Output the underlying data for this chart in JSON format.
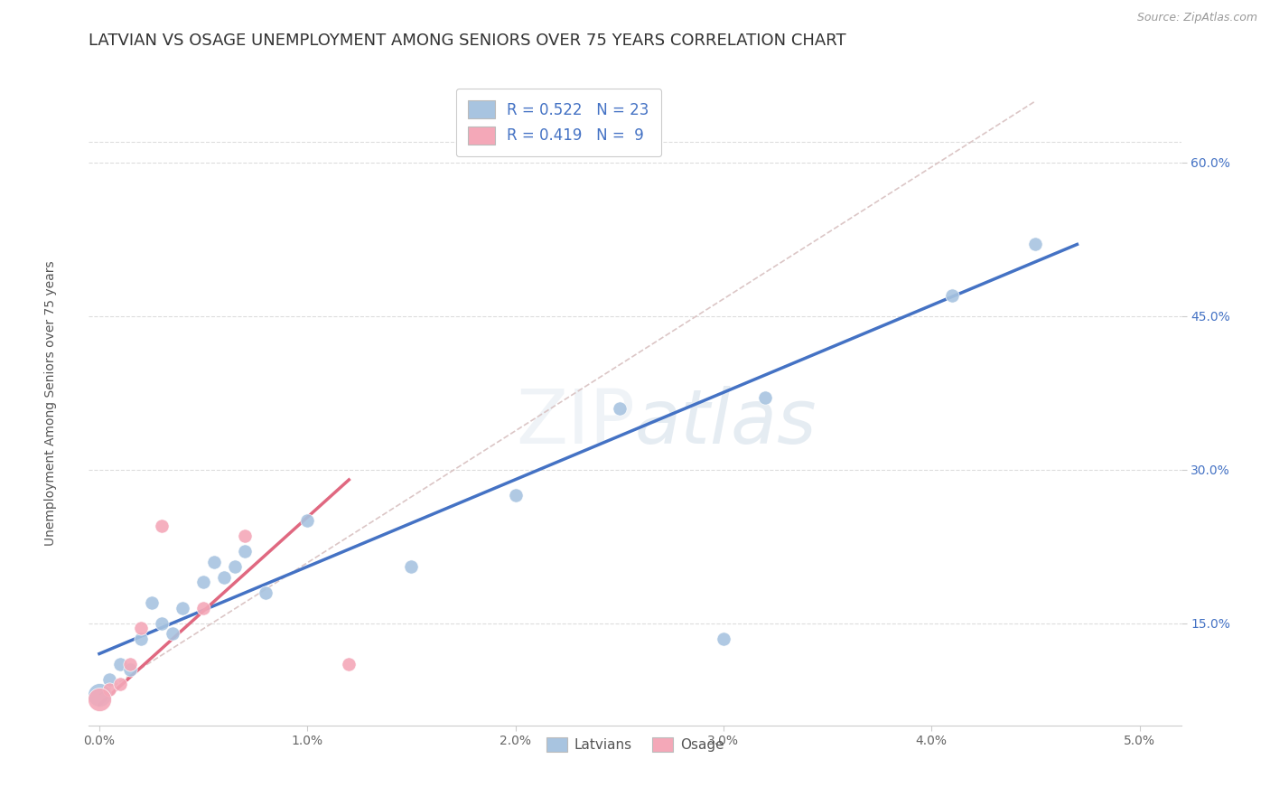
{
  "title": "LATVIAN VS OSAGE UNEMPLOYMENT AMONG SENIORS OVER 75 YEARS CORRELATION CHART",
  "source": "Source: ZipAtlas.com",
  "ylabel": "Unemployment Among Seniors over 75 years",
  "xlim": [
    -0.05,
    5.2
  ],
  "ylim": [
    5.0,
    68.0
  ],
  "x_ticks": [
    0.0,
    1.0,
    2.0,
    3.0,
    4.0,
    5.0
  ],
  "x_tick_labels": [
    "0.0%",
    "1.0%",
    "2.0%",
    "3.0%",
    "4.0%",
    "5.0%"
  ],
  "y_ticks": [
    15.0,
    30.0,
    45.0,
    60.0
  ],
  "y_tick_labels": [
    "15.0%",
    "30.0%",
    "45.0%",
    "60.0%"
  ],
  "latvian_x": [
    0.0,
    0.05,
    0.1,
    0.15,
    0.2,
    0.25,
    0.3,
    0.35,
    0.4,
    0.5,
    0.55,
    0.6,
    0.65,
    0.7,
    0.8,
    1.0,
    1.5,
    2.0,
    2.5,
    3.0,
    3.2,
    4.1,
    4.5
  ],
  "latvian_y": [
    8.0,
    9.5,
    11.0,
    10.5,
    13.5,
    17.0,
    15.0,
    14.0,
    16.5,
    19.0,
    21.0,
    19.5,
    20.5,
    22.0,
    18.0,
    25.0,
    20.5,
    27.5,
    36.0,
    13.5,
    37.0,
    47.0,
    52.0
  ],
  "osage_x": [
    0.0,
    0.05,
    0.1,
    0.15,
    0.2,
    0.3,
    0.5,
    0.7,
    1.2
  ],
  "osage_y": [
    7.5,
    8.5,
    9.0,
    11.0,
    14.5,
    24.5,
    16.5,
    23.5,
    11.0
  ],
  "latvian_color": "#a8c4e0",
  "osage_color": "#f4a8b8",
  "latvian_line_color": "#4472c4",
  "osage_line_color": "#e06880",
  "diagonal_color": "#d8c0c0",
  "R_latvian": 0.522,
  "N_latvian": 23,
  "R_osage": 0.419,
  "N_osage": 9,
  "title_fontsize": 13,
  "axis_label_fontsize": 10,
  "tick_fontsize": 10,
  "legend_fontsize": 12,
  "scatter_size": 120,
  "large_scatter_size": 350
}
